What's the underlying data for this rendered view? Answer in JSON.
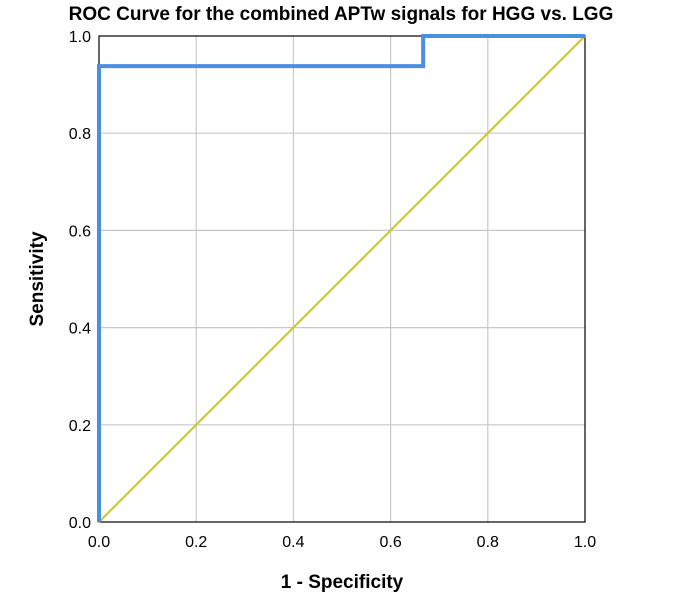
{
  "chart_data": {
    "type": "line",
    "title": "ROC Curve for the combined APTw signals for HGG vs. LGG",
    "xlabel": "1 - Specificity",
    "ylabel": "Sensitivity",
    "xlim": [
      0,
      1
    ],
    "ylim": [
      0,
      1
    ],
    "x_ticks": [
      "0.0",
      "0.2",
      "0.4",
      "0.6",
      "0.8",
      "1.0"
    ],
    "y_ticks": [
      "0.0",
      "0.2",
      "0.4",
      "0.6",
      "0.8",
      "1.0"
    ],
    "grid": true,
    "legend": "none",
    "series": [
      {
        "color": "#4a90e2",
        "x": [
          0.0,
          0.0,
          0.667,
          0.667,
          1.0
        ],
        "y": [
          0.0,
          0.938,
          0.938,
          1.0,
          1.0
        ]
      },
      {
        "color": "#d4c81c",
        "x": [
          0.0,
          1.0
        ],
        "y": [
          0.0,
          1.0
        ]
      }
    ]
  }
}
